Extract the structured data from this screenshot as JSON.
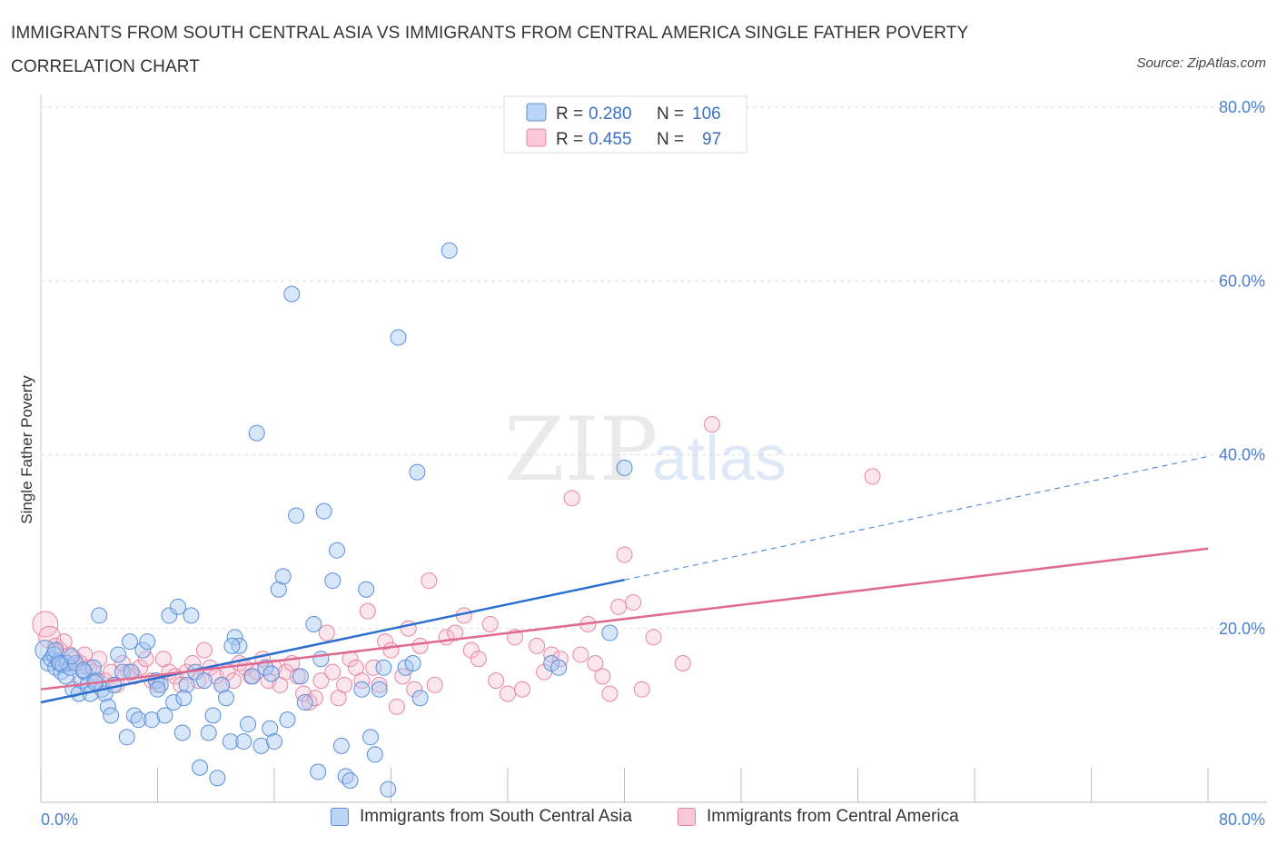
{
  "title": "IMMIGRANTS FROM SOUTH CENTRAL ASIA VS IMMIGRANTS FROM CENTRAL AMERICA SINGLE FATHER POVERTY CORRELATION CHART",
  "source": "Source: ZipAtlas.com",
  "watermark": {
    "zip": "ZIP",
    "atlas": "atlas"
  },
  "colors": {
    "blue_fill": "#a9c8f2",
    "blue_stroke": "#5a8fd9",
    "blue_line": "#2a6fd0",
    "pink_fill": "#f5b6ca",
    "pink_stroke": "#e586a4",
    "pink_line": "#e06a90",
    "axis_text": "#4a7fd0",
    "grid": "#dddddd"
  },
  "chart_data": {
    "type": "scatter",
    "title": "IMMIGRANTS FROM SOUTH CENTRAL ASIA VS IMMIGRANTS FROM CENTRAL AMERICA SINGLE FATHER POVERTY CORRELATION CHART",
    "xlabel": "",
    "ylabel": "Single Father Poverty",
    "xlim": [
      0,
      80
    ],
    "ylim": [
      0,
      80
    ],
    "x_tick_labels": [
      "0.0%",
      "80.0%"
    ],
    "y_tick_labels": [
      "80.0%",
      "60.0%",
      "40.0%",
      "20.0%"
    ],
    "y_ticks": [
      80,
      60,
      40,
      20
    ],
    "grid": true,
    "legend": {
      "placement": "top-center",
      "entries": [
        {
          "r_label": "R = ",
          "r_value": "0.280",
          "n_label": "N = ",
          "n_value": "106"
        },
        {
          "r_label": "R = ",
          "r_value": "0.455",
          "n_label": "N = ",
          "n_value": "97"
        }
      ]
    },
    "series": [
      {
        "name": "Immigrants from South Central Asia",
        "color": "#a9c8f2",
        "trend": {
          "x": [
            0,
            40
          ],
          "y": [
            11.5,
            25.6
          ],
          "dashed_to": [
            80,
            39.8
          ]
        },
        "points": [
          [
            0.3,
            17.5
          ],
          [
            0.5,
            16.0
          ],
          [
            0.7,
            16.5
          ],
          [
            0.9,
            17.0
          ],
          [
            1.0,
            15.5
          ],
          [
            1.2,
            16.2
          ],
          [
            1.4,
            15.0
          ],
          [
            1.5,
            15.8
          ],
          [
            1.7,
            14.5
          ],
          [
            1.8,
            16.0
          ],
          [
            2.0,
            15.5
          ],
          [
            2.2,
            13.0
          ],
          [
            2.4,
            16.0
          ],
          [
            2.6,
            12.5
          ],
          [
            2.8,
            14.0
          ],
          [
            3.0,
            15.0
          ],
          [
            3.2,
            13.5
          ],
          [
            3.4,
            12.5
          ],
          [
            3.6,
            15.5
          ],
          [
            3.8,
            14.0
          ],
          [
            4.0,
            21.5
          ],
          [
            4.2,
            13.0
          ],
          [
            4.4,
            12.5
          ],
          [
            4.6,
            11.0
          ],
          [
            4.8,
            10.0
          ],
          [
            5.0,
            13.5
          ],
          [
            5.3,
            17.0
          ],
          [
            5.6,
            15.0
          ],
          [
            5.9,
            7.5
          ],
          [
            6.1,
            18.5
          ],
          [
            6.4,
            10.0
          ],
          [
            6.7,
            9.5
          ],
          [
            7.0,
            17.5
          ],
          [
            7.3,
            18.5
          ],
          [
            7.6,
            9.5
          ],
          [
            7.9,
            14.0
          ],
          [
            8.2,
            13.5
          ],
          [
            8.5,
            10.0
          ],
          [
            8.8,
            21.5
          ],
          [
            9.1,
            11.5
          ],
          [
            9.4,
            22.5
          ],
          [
            9.7,
            8.0
          ],
          [
            10.0,
            13.5
          ],
          [
            10.3,
            21.5
          ],
          [
            10.6,
            15.0
          ],
          [
            10.9,
            4.0
          ],
          [
            11.2,
            14.0
          ],
          [
            11.5,
            8.0
          ],
          [
            11.8,
            10.0
          ],
          [
            12.1,
            2.8
          ],
          [
            12.4,
            13.5
          ],
          [
            12.7,
            12.0
          ],
          [
            13.0,
            7.0
          ],
          [
            13.3,
            19.0
          ],
          [
            13.6,
            18.0
          ],
          [
            13.9,
            7.0
          ],
          [
            14.2,
            9.0
          ],
          [
            14.5,
            14.5
          ],
          [
            14.8,
            42.5
          ],
          [
            15.1,
            6.5
          ],
          [
            15.4,
            15.5
          ],
          [
            15.7,
            8.5
          ],
          [
            16.0,
            7.0
          ],
          [
            16.3,
            24.5
          ],
          [
            16.6,
            26.0
          ],
          [
            16.9,
            9.5
          ],
          [
            17.2,
            58.5
          ],
          [
            17.5,
            33.0
          ],
          [
            17.8,
            14.5
          ],
          [
            18.1,
            11.5
          ],
          [
            18.7,
            20.5
          ],
          [
            19.0,
            3.5
          ],
          [
            19.2,
            16.5
          ],
          [
            19.4,
            33.5
          ],
          [
            20.0,
            25.5
          ],
          [
            20.3,
            29.0
          ],
          [
            20.6,
            6.5
          ],
          [
            20.9,
            3.0
          ],
          [
            21.2,
            2.5
          ],
          [
            22.0,
            13.0
          ],
          [
            22.3,
            24.5
          ],
          [
            22.6,
            7.5
          ],
          [
            22.9,
            5.5
          ],
          [
            23.2,
            13.0
          ],
          [
            23.5,
            15.5
          ],
          [
            23.8,
            1.5
          ],
          [
            24.5,
            53.5
          ],
          [
            25.0,
            15.5
          ],
          [
            25.5,
            16.0
          ],
          [
            25.8,
            38.0
          ],
          [
            26.0,
            12.0
          ],
          [
            28.0,
            63.5
          ],
          [
            35.0,
            16.0
          ],
          [
            35.5,
            15.5
          ],
          [
            39.0,
            19.5
          ],
          [
            40.0,
            38.5
          ],
          [
            1.0,
            17.5
          ],
          [
            1.3,
            16.0
          ],
          [
            2.1,
            16.8
          ],
          [
            2.9,
            15.2
          ],
          [
            3.7,
            13.8
          ],
          [
            6.2,
            15.0
          ],
          [
            8.0,
            13.0
          ],
          [
            9.8,
            12.0
          ],
          [
            13.1,
            18.0
          ],
          [
            15.8,
            14.8
          ]
        ]
      },
      {
        "name": "Immigrants from Central America",
        "color": "#f5b6ca",
        "trend": {
          "x": [
            0,
            80
          ],
          "y": [
            13.0,
            29.2
          ]
        },
        "points": [
          [
            0.3,
            20.5
          ],
          [
            0.6,
            19.0
          ],
          [
            1.0,
            18.0
          ],
          [
            1.3,
            17.5
          ],
          [
            1.6,
            18.5
          ],
          [
            2.0,
            17.0
          ],
          [
            2.3,
            16.5
          ],
          [
            2.7,
            16.0
          ],
          [
            3.0,
            17.0
          ],
          [
            3.3,
            15.5
          ],
          [
            3.6,
            15.0
          ],
          [
            4.0,
            16.5
          ],
          [
            4.4,
            14.0
          ],
          [
            4.8,
            15.0
          ],
          [
            5.2,
            13.5
          ],
          [
            5.6,
            16.0
          ],
          [
            6.0,
            15.0
          ],
          [
            6.4,
            14.5
          ],
          [
            6.8,
            15.5
          ],
          [
            7.2,
            16.5
          ],
          [
            7.6,
            14.0
          ],
          [
            8.0,
            13.5
          ],
          [
            8.4,
            16.5
          ],
          [
            8.8,
            15.0
          ],
          [
            9.2,
            14.5
          ],
          [
            9.6,
            13.5
          ],
          [
            10.0,
            15.0
          ],
          [
            10.4,
            16.0
          ],
          [
            10.8,
            14.0
          ],
          [
            11.2,
            17.5
          ],
          [
            11.6,
            15.5
          ],
          [
            12.0,
            14.5
          ],
          [
            12.4,
            13.5
          ],
          [
            12.8,
            15.0
          ],
          [
            13.2,
            14.0
          ],
          [
            13.6,
            16.0
          ],
          [
            14.0,
            15.5
          ],
          [
            14.4,
            14.5
          ],
          [
            14.8,
            15.0
          ],
          [
            15.2,
            16.5
          ],
          [
            15.6,
            14.0
          ],
          [
            16.0,
            15.5
          ],
          [
            16.4,
            13.5
          ],
          [
            16.8,
            15.0
          ],
          [
            17.2,
            16.0
          ],
          [
            17.6,
            14.5
          ],
          [
            18.0,
            12.5
          ],
          [
            18.4,
            11.5
          ],
          [
            18.8,
            12.0
          ],
          [
            19.2,
            14.0
          ],
          [
            19.6,
            19.5
          ],
          [
            20.0,
            15.0
          ],
          [
            20.4,
            12.0
          ],
          [
            20.8,
            13.5
          ],
          [
            21.2,
            16.5
          ],
          [
            21.6,
            15.5
          ],
          [
            22.0,
            14.0
          ],
          [
            22.4,
            22.0
          ],
          [
            22.8,
            15.5
          ],
          [
            23.2,
            13.5
          ],
          [
            23.6,
            18.5
          ],
          [
            24.0,
            17.5
          ],
          [
            24.4,
            11.0
          ],
          [
            24.8,
            14.5
          ],
          [
            25.2,
            20.0
          ],
          [
            25.6,
            13.0
          ],
          [
            26.0,
            18.0
          ],
          [
            26.6,
            25.5
          ],
          [
            27.0,
            13.5
          ],
          [
            27.8,
            19.0
          ],
          [
            28.4,
            19.5
          ],
          [
            29.0,
            21.5
          ],
          [
            29.5,
            17.5
          ],
          [
            30.0,
            16.5
          ],
          [
            30.8,
            20.5
          ],
          [
            31.2,
            14.0
          ],
          [
            32.0,
            12.5
          ],
          [
            32.5,
            19.0
          ],
          [
            33.0,
            13.0
          ],
          [
            34.0,
            18.0
          ],
          [
            34.5,
            15.0
          ],
          [
            35.0,
            17.0
          ],
          [
            35.6,
            16.5
          ],
          [
            36.4,
            35.0
          ],
          [
            37.0,
            17.0
          ],
          [
            37.5,
            20.5
          ],
          [
            38.0,
            16.0
          ],
          [
            38.5,
            14.5
          ],
          [
            39.0,
            12.5
          ],
          [
            39.6,
            22.5
          ],
          [
            40.0,
            28.5
          ],
          [
            40.6,
            23.0
          ],
          [
            41.2,
            13.0
          ],
          [
            42.0,
            19.0
          ],
          [
            44.0,
            16.0
          ],
          [
            46.0,
            43.5
          ],
          [
            57.0,
            37.5
          ]
        ]
      }
    ]
  },
  "bottom_legend": [
    {
      "label": "Immigrants from South Central Asia"
    },
    {
      "label": "Immigrants from Central America"
    }
  ]
}
